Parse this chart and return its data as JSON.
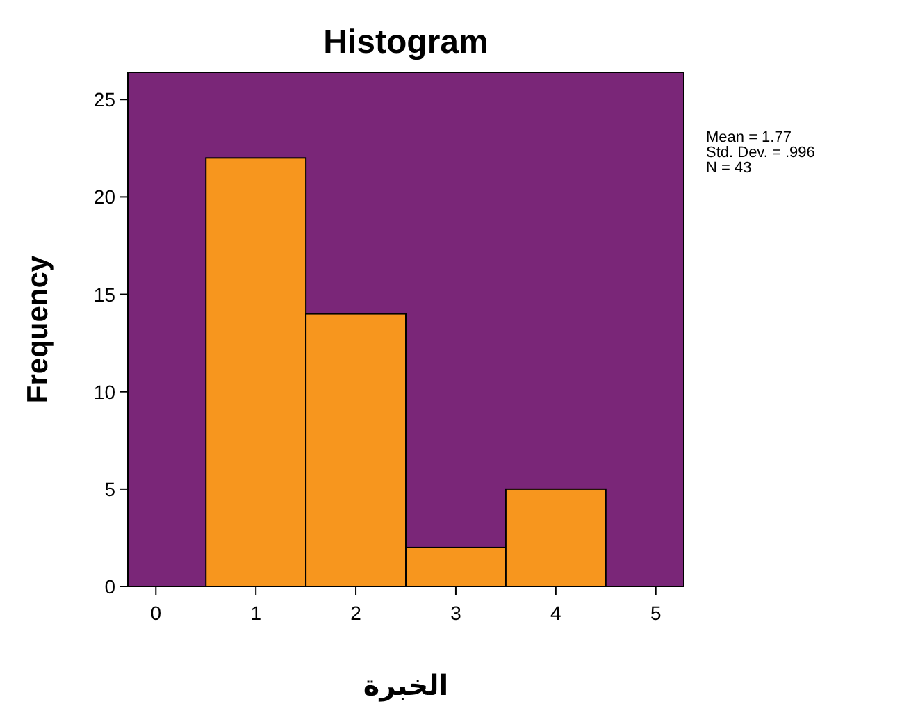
{
  "chart_data": {
    "type": "histogram",
    "title": "Histogram",
    "xlabel": "الخبرة",
    "ylabel": "Frequency",
    "bins": [
      0.5,
      1.5,
      2.5,
      3.5,
      4.5
    ],
    "values": [
      22,
      14,
      2,
      5
    ],
    "color": "#f7961e",
    "xlim": [
      -0.28,
      5.28
    ],
    "xticks": [
      0,
      1,
      2,
      3,
      4,
      5
    ],
    "ylim": [
      0,
      26.4
    ],
    "yticks": [
      0,
      5,
      10,
      15,
      20,
      25
    ],
    "grid": false,
    "annotations": [
      "Mean = 1.77",
      "Std. Dev. = .996",
      "N = 43"
    ]
  }
}
